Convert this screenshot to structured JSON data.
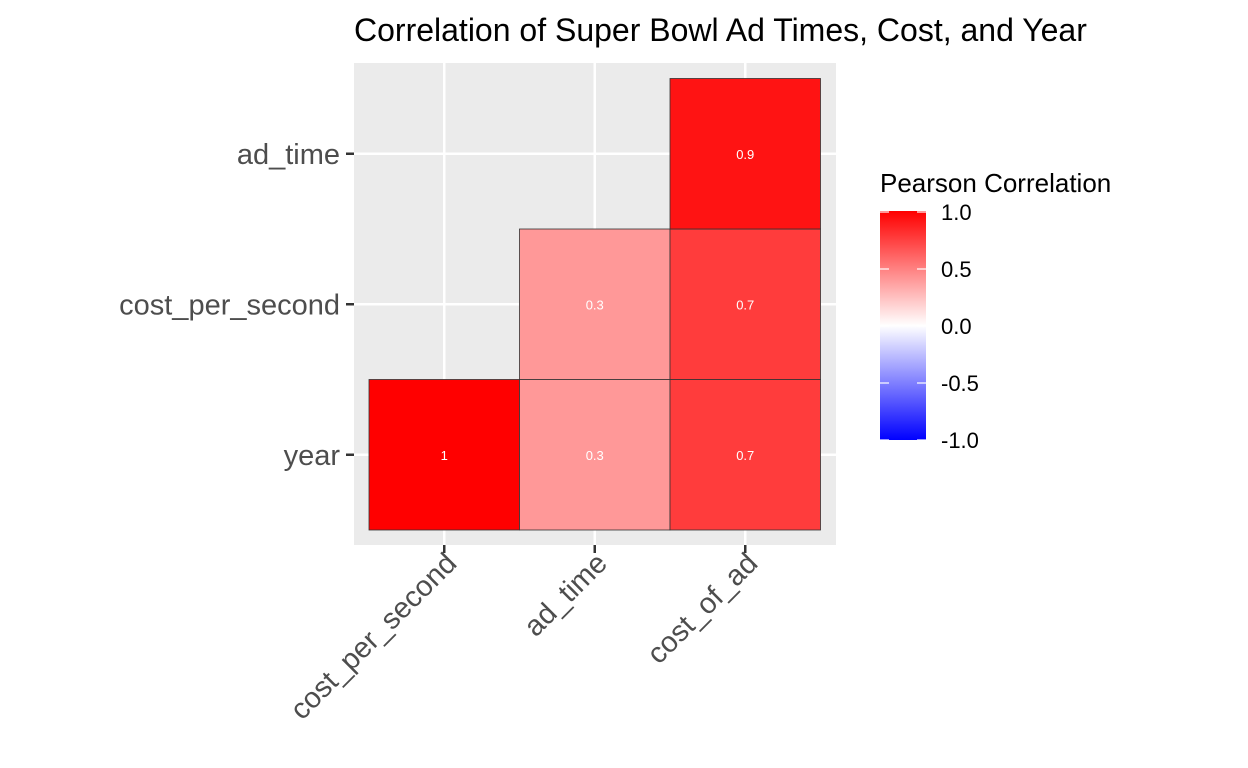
{
  "chart_data": {
    "type": "heatmap",
    "title": "Correlation of Super Bowl Ad Times, Cost, and Year",
    "x_categories": [
      "cost_per_second",
      "ad_time",
      "cost_of_ad"
    ],
    "y_categories": [
      "year",
      "cost_per_second",
      "ad_time"
    ],
    "cells": [
      {
        "x": "cost_per_second",
        "y": "year",
        "value": 1,
        "label": "1"
      },
      {
        "x": "ad_time",
        "y": "year",
        "value": 0.3,
        "label": "0.3"
      },
      {
        "x": "cost_of_ad",
        "y": "year",
        "value": 0.7,
        "label": "0.7"
      },
      {
        "x": "ad_time",
        "y": "cost_per_second",
        "value": 0.3,
        "label": "0.3"
      },
      {
        "x": "cost_of_ad",
        "y": "cost_per_second",
        "value": 0.7,
        "label": "0.7"
      },
      {
        "x": "cost_of_ad",
        "y": "ad_time",
        "value": 0.9,
        "label": "0.9"
      }
    ],
    "legend": {
      "title": "Pearson Correlation",
      "placement": "right",
      "range": [
        -1,
        1
      ],
      "ticks": [
        "1.0",
        "0.5",
        "0.0",
        "-0.5",
        "-1.0"
      ],
      "tick_values": [
        1,
        0.5,
        0,
        -0.5,
        -1
      ]
    },
    "colors": {
      "low": "#0000ff",
      "mid": "#ffffff",
      "high": "#ff0000",
      "panel_background": "#ebebeb",
      "grid": "#ffffff"
    },
    "grid": true
  }
}
